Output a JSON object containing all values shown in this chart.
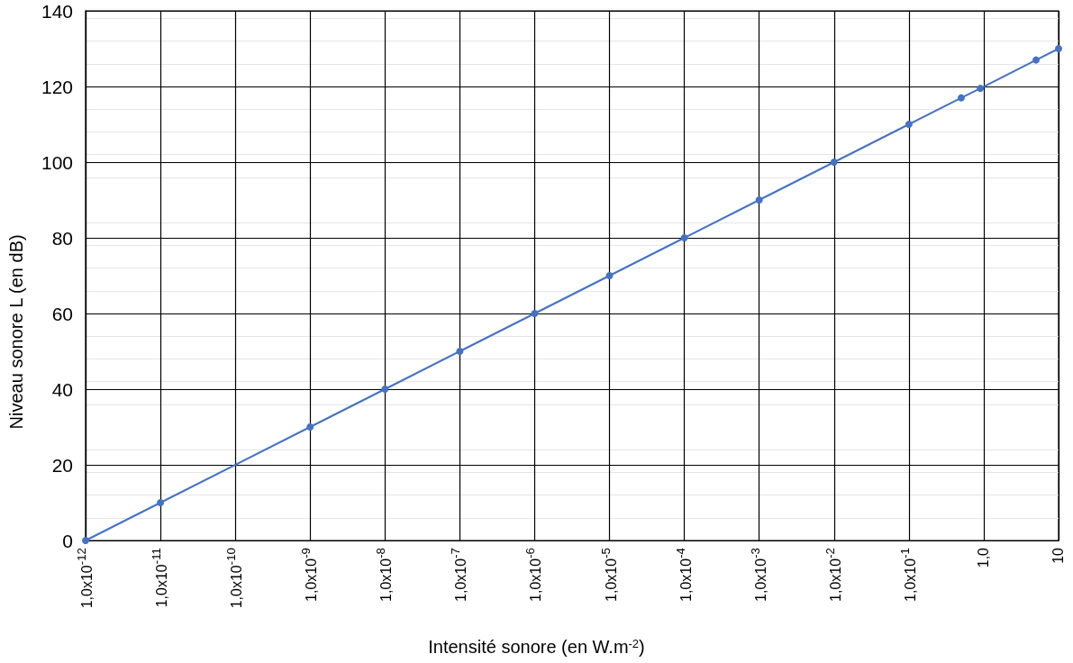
{
  "chart_data": {
    "type": "line",
    "xlabel": "Intensité sonore (en W.m$^{-2}$)",
    "ylabel": "Niveau sonore L (en dB)",
    "x": [
      1e-12,
      1e-11,
      1e-09,
      1e-08,
      1e-07,
      1e-06,
      1e-05,
      0.0001,
      0.001,
      0.01,
      0.1,
      0.5,
      0.9,
      5,
      10
    ],
    "series": [
      {
        "color": "#4472c4",
        "values": [
          0,
          10,
          30,
          40,
          50,
          60,
          70,
          80,
          90,
          100,
          110,
          117,
          119.5,
          127,
          130
        ]
      }
    ],
    "log": "x",
    "xlim": [
      1e-12,
      10
    ],
    "xticks": [
      {
        "value": 1e-12,
        "label": "1,0x10$^{-12}$"
      },
      {
        "value": 1e-11,
        "label": "1,0x10$^{-11}$"
      },
      {
        "value": 1e-10,
        "label": "1,0x10$^{-10}$"
      },
      {
        "value": 1e-09,
        "label": "1,0x10$^{-9}$"
      },
      {
        "value": 1e-08,
        "label": "1,0x10$^{-8}$"
      },
      {
        "value": 1e-07,
        "label": "1,0x10$^{-7}$"
      },
      {
        "value": 1e-06,
        "label": "1,0x10$^{-6}$"
      },
      {
        "value": 1e-05,
        "label": "1,0x10$^{-5}$"
      },
      {
        "value": 0.0001,
        "label": "1,0x10$^{-4}$"
      },
      {
        "value": 0.001,
        "label": "1,0x10$^{-3}$"
      },
      {
        "value": 0.01,
        "label": "1,0x10$^{-2}$"
      },
      {
        "value": 0.1,
        "label": "1,0x10$^{-1}$"
      },
      {
        "value": 1,
        "label": "1,0"
      },
      {
        "value": 10,
        "label": "10"
      }
    ],
    "ylim": [
      0,
      140
    ],
    "yticks": [
      0,
      20,
      40,
      60,
      80,
      100,
      120,
      140
    ],
    "grid": true,
    "marker": "circle",
    "line_style": "solid"
  }
}
